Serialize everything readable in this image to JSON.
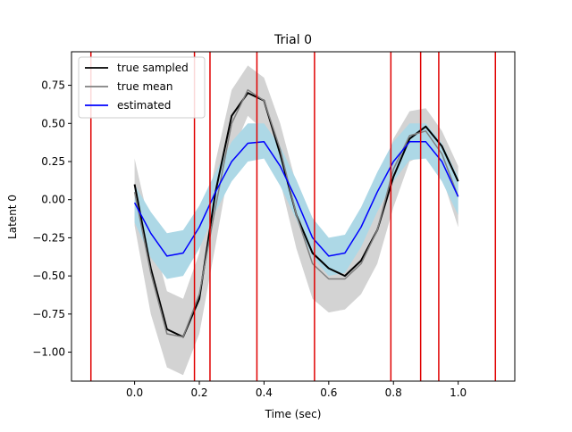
{
  "chart_data": {
    "type": "line",
    "title": "Trial 0",
    "xlabel": "Time (sec)",
    "ylabel": "Latent 0",
    "xlim": [
      -0.195,
      1.175
    ],
    "ylim": [
      -1.19,
      0.97
    ],
    "x_ticks": [
      0.0,
      0.2,
      0.4,
      0.6,
      0.8,
      1.0
    ],
    "x_tick_labels": [
      "0.0",
      "0.2",
      "0.4",
      "0.6",
      "0.8",
      "1.0"
    ],
    "y_ticks": [
      0.75,
      0.5,
      0.25,
      0.0,
      -0.25,
      -0.5,
      -0.75,
      -1.0
    ],
    "y_tick_labels": [
      "0.75",
      "0.50",
      "0.25",
      "0.00",
      "−0.25",
      "−0.50",
      "−0.75",
      "−1.00"
    ],
    "grid": false,
    "legend_position": "top-left",
    "vertical_lines": {
      "color": "#e00000",
      "x": [
        -0.135,
        0.185,
        0.233,
        0.378,
        0.556,
        0.792,
        0.884,
        0.94,
        1.115
      ]
    },
    "x": [
      0.0,
      0.05,
      0.1,
      0.15,
      0.2,
      0.25,
      0.3,
      0.35,
      0.4,
      0.45,
      0.5,
      0.55,
      0.6,
      0.65,
      0.7,
      0.75,
      0.8,
      0.85,
      0.9,
      0.95,
      1.0
    ],
    "series": [
      {
        "name": "true sampled",
        "color": "#000000",
        "values": [
          0.1,
          -0.45,
          -0.85,
          -0.9,
          -0.65,
          0.05,
          0.55,
          0.7,
          0.65,
          0.3,
          -0.1,
          -0.35,
          -0.45,
          -0.5,
          -0.4,
          -0.2,
          0.15,
          0.4,
          0.48,
          0.35,
          0.12
        ]
      },
      {
        "name": "true mean",
        "color": "#808080",
        "values": [
          0.05,
          -0.48,
          -0.88,
          -0.9,
          -0.62,
          -0.05,
          0.5,
          0.72,
          0.65,
          0.33,
          -0.1,
          -0.42,
          -0.52,
          -0.52,
          -0.42,
          -0.2,
          0.2,
          0.42,
          0.45,
          0.3,
          0.02
        ]
      },
      {
        "name": "estimated",
        "color": "#0000ff",
        "values": [
          -0.02,
          -0.22,
          -0.37,
          -0.35,
          -0.18,
          0.05,
          0.25,
          0.37,
          0.38,
          0.22,
          0.0,
          -0.25,
          -0.37,
          -0.35,
          -0.18,
          0.05,
          0.25,
          0.38,
          0.38,
          0.25,
          0.02
        ]
      }
    ],
    "bands": [
      {
        "of": "true",
        "color": "#d3d3d3",
        "upper": [
          0.27,
          -0.2,
          -0.6,
          -0.65,
          -0.35,
          0.25,
          0.72,
          0.88,
          0.8,
          0.5,
          0.1,
          -0.22,
          -0.32,
          -0.32,
          -0.2,
          0.05,
          0.4,
          0.58,
          0.6,
          0.45,
          0.22
        ],
        "lower": [
          -0.17,
          -0.75,
          -1.1,
          -1.15,
          -0.88,
          -0.3,
          0.3,
          0.55,
          0.45,
          0.12,
          -0.32,
          -0.65,
          -0.74,
          -0.72,
          -0.62,
          -0.42,
          -0.05,
          0.25,
          0.3,
          0.15,
          -0.18
        ]
      },
      {
        "of": "estimated",
        "color": "#add8e6",
        "upper": [
          0.1,
          -0.08,
          -0.22,
          -0.2,
          -0.04,
          0.18,
          0.38,
          0.5,
          0.5,
          0.35,
          0.13,
          -0.12,
          -0.25,
          -0.23,
          -0.05,
          0.18,
          0.38,
          0.5,
          0.5,
          0.37,
          0.15
        ],
        "lower": [
          -0.15,
          -0.38,
          -0.52,
          -0.5,
          -0.32,
          -0.08,
          0.12,
          0.25,
          0.27,
          0.09,
          -0.13,
          -0.38,
          -0.5,
          -0.48,
          -0.31,
          -0.08,
          0.12,
          0.26,
          0.27,
          0.12,
          -0.1
        ]
      }
    ]
  }
}
